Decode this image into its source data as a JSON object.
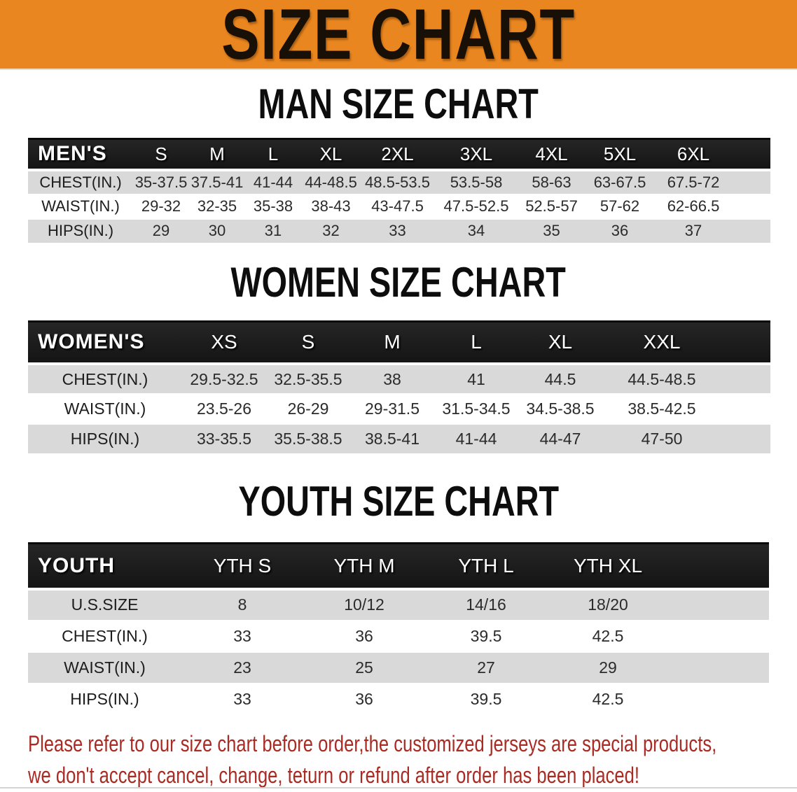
{
  "banner": {
    "title": "SIZE CHART",
    "bg_color": "#e9861f",
    "text_color": "#181007"
  },
  "colors": {
    "header_bar": "#1a1a1a",
    "stripe_gray": "#d9d9d9",
    "footer_red": "#a92b23"
  },
  "sections": [
    {
      "heading": "MAN SIZE CHART",
      "corner": "MEN'S",
      "columns": [
        "S",
        "M",
        "L",
        "XL",
        "2XL",
        "3XL",
        "4XL",
        "5XL",
        "6XL"
      ],
      "rows": [
        {
          "label": "CHEST(IN.)",
          "values": [
            "35-37.5",
            "37.5-41",
            "41-44",
            "44-48.5",
            "48.5-53.5",
            "53.5-58",
            "58-63",
            "63-67.5",
            "67.5-72"
          ]
        },
        {
          "label": "WAIST(IN.)",
          "values": [
            "29-32",
            "32-35",
            "35-38",
            "38-43",
            "43-47.5",
            "47.5-52.5",
            "52.5-57",
            "57-62",
            "62-66.5"
          ]
        },
        {
          "label": "HIPS(IN.)",
          "values": [
            "29",
            "30",
            "31",
            "32",
            "33",
            "34",
            "35",
            "36",
            "37"
          ]
        }
      ]
    },
    {
      "heading": "WOMEN SIZE CHART",
      "corner": "WOMEN'S",
      "columns": [
        "XS",
        "S",
        "M",
        "L",
        "XL",
        "XXL"
      ],
      "rows": [
        {
          "label": "CHEST(IN.)",
          "values": [
            "29.5-32.5",
            "32.5-35.5",
            "38",
            "41",
            "44.5",
            "44.5-48.5"
          ]
        },
        {
          "label": "WAIST(IN.)",
          "values": [
            "23.5-26",
            "26-29",
            "29-31.5",
            "31.5-34.5",
            "34.5-38.5",
            "38.5-42.5"
          ]
        },
        {
          "label": "HIPS(IN.)",
          "values": [
            "33-35.5",
            "35.5-38.5",
            "38.5-41",
            "41-44",
            "44-47",
            "47-50"
          ]
        }
      ]
    },
    {
      "heading": "YOUTH SIZE CHART",
      "corner": "YOUTH",
      "columns": [
        "YTH S",
        "YTH M",
        "YTH L",
        "YTH XL"
      ],
      "rows": [
        {
          "label": "U.S.SIZE",
          "values": [
            "8",
            "10/12",
            "14/16",
            "18/20"
          ]
        },
        {
          "label": "CHEST(IN.)",
          "values": [
            "33",
            "36",
            "39.5",
            "42.5"
          ]
        },
        {
          "label": "WAIST(IN.)",
          "values": [
            "23",
            "25",
            "27",
            "29"
          ]
        },
        {
          "label": "HIPS(IN.)",
          "values": [
            "33",
            "36",
            "39.5",
            "42.5"
          ]
        }
      ]
    }
  ],
  "footer": {
    "line1": "Please refer to our size chart before order,the customized jerseys are special products,",
    "line2": "we don't accept cancel, change, teturn or refund after order has been placed!"
  }
}
